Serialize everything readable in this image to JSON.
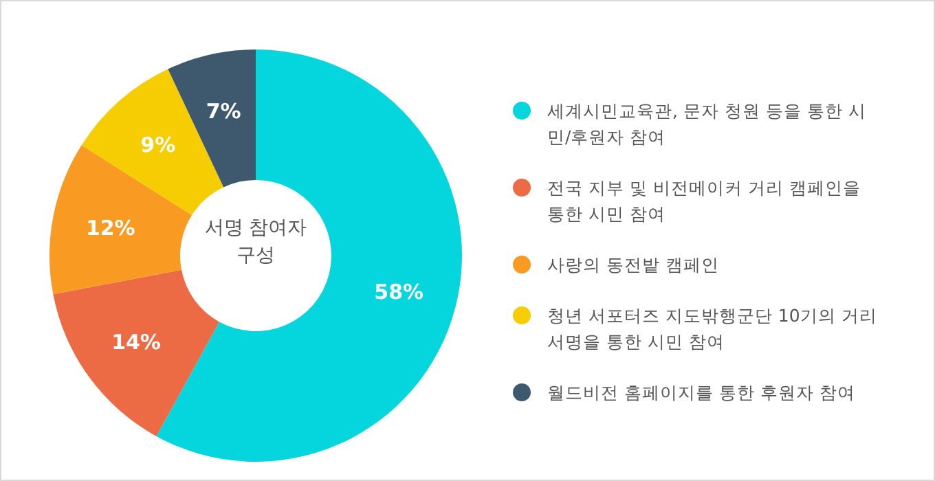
{
  "chart_data": {
    "type": "donut",
    "title": "서명 참여자 구성",
    "categories": [
      "세계시민교육관, 문자 청원 등을 통한 시민/후원자 참여",
      "전국 지부 및 비전메이커 거리 캠페인을 통한 시민 참여",
      "사랑의 동전밭 캠페인",
      "청년 서포터즈 지도밖행군단 10기의 거리 서명을 통한 시민 참여",
      "월드비전 홈페이지를 통한 후원자 참여"
    ],
    "values": [
      58,
      14,
      12,
      9,
      7
    ],
    "value_labels": [
      "58%",
      "14%",
      "12%",
      "9%",
      "7%"
    ],
    "colors": [
      "#05d5dc",
      "#ec6a44",
      "#f99b22",
      "#f5cd02",
      "#3e596e"
    ],
    "legend": "right"
  }
}
